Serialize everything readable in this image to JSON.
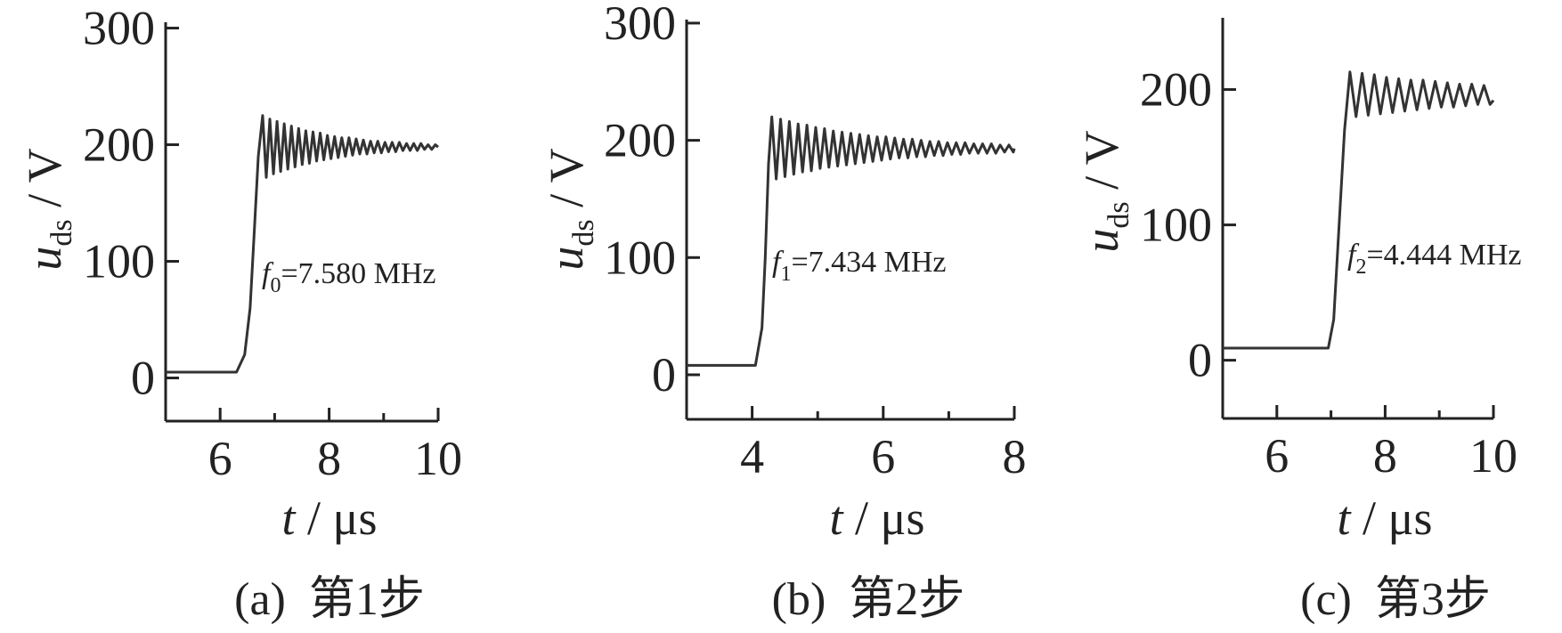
{
  "chart_data": [
    {
      "type": "line",
      "caption": "(a)  第1步",
      "ylabel": {
        "symbol": "u",
        "subscript": "ds",
        "unit": " / V"
      },
      "xlabel": {
        "symbol": "t",
        "unit": " / μs"
      },
      "annotation": {
        "symbol": "f",
        "subscript": "0",
        "text": "=7.580 MHz"
      },
      "xlim": [
        5,
        10
      ],
      "ylim": [
        -37,
        305
      ],
      "xticks": [
        6,
        8,
        10
      ],
      "xminorticks": [
        5,
        7,
        9
      ],
      "yticks": [
        0,
        100,
        200,
        300
      ],
      "color": "#333333",
      "x": [
        5,
        6.3,
        6.45,
        6.55,
        6.62,
        6.7,
        6.78,
        6.846,
        6.912,
        6.978,
        7.044,
        7.11,
        7.176,
        7.242,
        7.308,
        7.374,
        7.44,
        7.506,
        7.572,
        7.638,
        7.704,
        7.77,
        7.836,
        7.902,
        7.968,
        8.034,
        8.1,
        8.166,
        8.232,
        8.298,
        8.364,
        8.43,
        8.496,
        8.562,
        8.628,
        8.694,
        8.76,
        8.826,
        8.892,
        8.958,
        9.024,
        9.09,
        9.156,
        9.222,
        9.288,
        9.354,
        9.42,
        9.486,
        9.552,
        9.618,
        9.684,
        9.75,
        9.816,
        9.882,
        9.948,
        10
      ],
      "values": [
        5,
        5,
        20,
        60,
        120,
        190,
        225,
        172,
        222,
        175,
        220,
        177,
        218,
        179,
        216,
        181,
        214,
        183,
        212,
        184,
        211,
        186,
        210,
        187,
        208,
        188,
        207,
        189,
        206,
        190,
        206,
        191,
        205,
        192,
        204,
        192,
        203,
        193,
        203,
        193,
        202,
        194,
        202,
        194,
        202,
        195,
        201,
        195,
        201,
        195,
        201,
        196,
        200,
        196,
        200,
        198
      ]
    },
    {
      "type": "line",
      "caption": "(b)  第2步",
      "ylabel": {
        "symbol": "u",
        "subscript": "ds",
        "unit": " / V"
      },
      "xlabel": {
        "symbol": "t",
        "unit": " / μs"
      },
      "annotation": {
        "symbol": "f",
        "subscript": "1",
        "text": "=7.434 MHz"
      },
      "xlim": [
        3,
        8
      ],
      "ylim": [
        -38,
        303
      ],
      "xticks": [
        4,
        6,
        8
      ],
      "xminorticks": [
        3,
        5,
        7
      ],
      "yticks": [
        0,
        100,
        200,
        300
      ],
      "color": "#333333",
      "x": [
        3,
        4.05,
        4.15,
        4.2,
        4.25,
        4.3,
        4.367,
        4.434,
        4.501,
        4.568,
        4.635,
        4.702,
        4.769,
        4.836,
        4.903,
        4.97,
        5.037,
        5.104,
        5.171,
        5.238,
        5.305,
        5.372,
        5.439,
        5.506,
        5.573,
        5.64,
        5.707,
        5.774,
        5.841,
        5.908,
        5.975,
        6.042,
        6.109,
        6.176,
        6.243,
        6.31,
        6.377,
        6.444,
        6.511,
        6.578,
        6.645,
        6.712,
        6.779,
        6.846,
        6.913,
        6.98,
        7.047,
        7.114,
        7.181,
        7.248,
        7.315,
        7.382,
        7.449,
        7.516,
        7.583,
        7.65,
        7.717,
        7.784,
        7.851,
        7.918,
        7.985,
        8
      ],
      "values": [
        8,
        8,
        40,
        100,
        180,
        220,
        167,
        218,
        169,
        216,
        171,
        214,
        173,
        213,
        174,
        211,
        176,
        210,
        177,
        208,
        178,
        207,
        179,
        206,
        180,
        205,
        181,
        204,
        182,
        203,
        183,
        203,
        184,
        202,
        185,
        201,
        185,
        201,
        186,
        200,
        186,
        199,
        187,
        199,
        187,
        198,
        188,
        198,
        188,
        198,
        189,
        197,
        189,
        197,
        189,
        197,
        189,
        196,
        190,
        196,
        190,
        193
      ]
    },
    {
      "type": "line",
      "caption": "(c)  第3步",
      "ylabel": {
        "symbol": "u",
        "subscript": "ds",
        "unit": " / V"
      },
      "xlabel": {
        "symbol": "t",
        "unit": " / μs"
      },
      "annotation": {
        "symbol": "f",
        "subscript": "2",
        "text": "=4.444 MHz"
      },
      "xlim": [
        5,
        10
      ],
      "ylim": [
        -43,
        253
      ],
      "xticks": [
        6,
        8,
        10
      ],
      "xminorticks": [
        5,
        7,
        9
      ],
      "yticks": [
        0,
        100,
        200
      ],
      "color": "#333333",
      "x": [
        5,
        6.95,
        7.05,
        7.15,
        7.25,
        7.35,
        7.4625,
        7.575,
        7.6875,
        7.8,
        7.9125,
        8.025,
        8.1375,
        8.25,
        8.3625,
        8.475,
        8.5875,
        8.7,
        8.8125,
        8.925,
        9.0375,
        9.15,
        9.2625,
        9.375,
        9.4875,
        9.6,
        9.7125,
        9.825,
        9.9375,
        10
      ],
      "values": [
        9,
        9,
        30,
        100,
        170,
        213,
        180,
        212,
        181,
        211,
        182,
        209,
        183,
        208,
        184,
        207,
        185,
        207,
        186,
        206,
        187,
        205,
        187,
        204,
        188,
        204,
        189,
        203,
        189,
        192
      ]
    }
  ]
}
